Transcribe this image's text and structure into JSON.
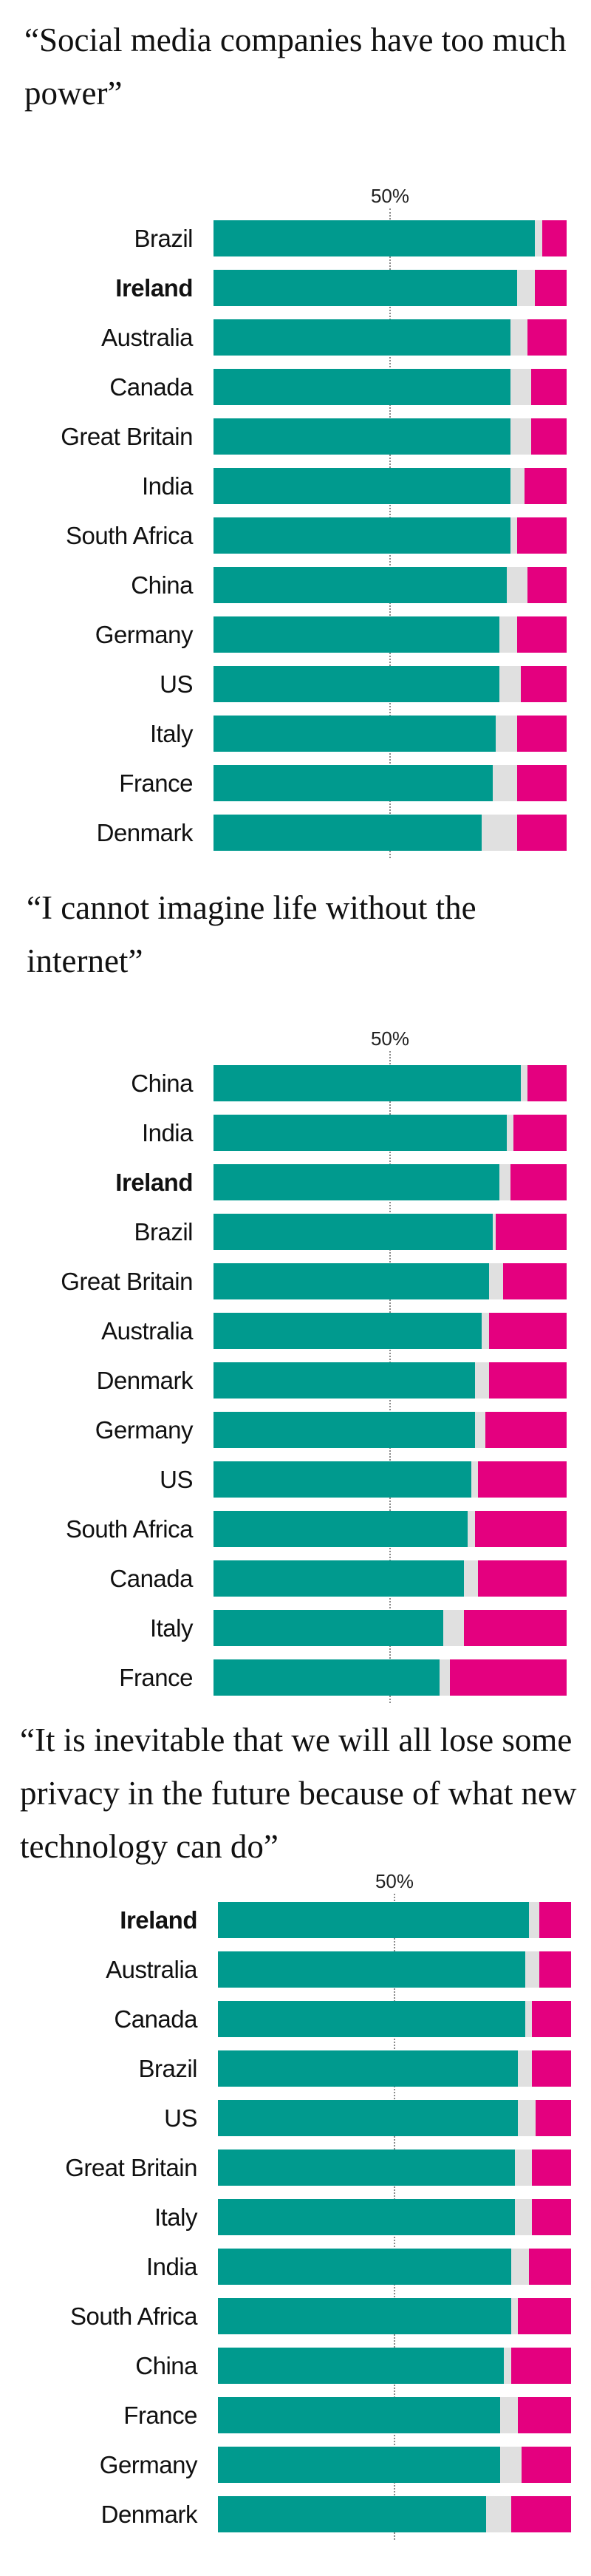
{
  "colors": {
    "agree": "#009a8e",
    "neither": "#e0e0e0",
    "disagree": "#e4007f",
    "midline": "#8a8a8a"
  },
  "chart_data": [
    {
      "type": "bar",
      "stacked": true,
      "orientation": "horizontal",
      "title": "“Social media companies have too much power”",
      "tick_label": "50%",
      "xlim": [
        0,
        100
      ],
      "highlight": "Ireland",
      "categories": [
        "Brazil",
        "Ireland",
        "Australia",
        "Canada",
        "Great Britain",
        "India",
        "South Africa",
        "China",
        "Germany",
        "US",
        "Italy",
        "France",
        "Denmark"
      ],
      "values": [
        [
          91,
          2,
          7
        ],
        [
          86,
          5,
          9
        ],
        [
          84,
          5,
          11
        ],
        [
          84,
          6,
          10
        ],
        [
          84,
          6,
          10
        ],
        [
          84,
          4,
          12
        ],
        [
          84,
          2,
          14
        ],
        [
          83,
          6,
          11
        ],
        [
          81,
          5,
          14
        ],
        [
          81,
          6,
          13
        ],
        [
          80,
          6,
          14
        ],
        [
          79,
          7,
          14
        ],
        [
          76,
          10,
          14
        ]
      ]
    },
    {
      "type": "bar",
      "stacked": true,
      "orientation": "horizontal",
      "title": "“I cannot imagine life without the internet”",
      "tick_label": "50%",
      "xlim": [
        0,
        100
      ],
      "highlight": "Ireland",
      "categories": [
        "China",
        "India",
        "Ireland",
        "Brazil",
        "Great Britain",
        "Australia",
        "Denmark",
        "Germany",
        "US",
        "South Africa",
        "Canada",
        "Italy",
        "France"
      ],
      "values": [
        [
          87,
          2,
          11
        ],
        [
          83,
          2,
          15
        ],
        [
          81,
          3,
          16
        ],
        [
          79,
          1,
          20
        ],
        [
          78,
          4,
          18
        ],
        [
          76,
          2,
          22
        ],
        [
          74,
          4,
          22
        ],
        [
          74,
          3,
          23
        ],
        [
          73,
          2,
          25
        ],
        [
          72,
          2,
          26
        ],
        [
          71,
          4,
          25
        ],
        [
          65,
          6,
          29
        ],
        [
          64,
          3,
          33
        ]
      ]
    },
    {
      "type": "bar",
      "stacked": true,
      "orientation": "horizontal",
      "title": "“It is inevitable that we will all lose some privacy in the future because of what new technology can do”",
      "tick_label": "50%",
      "xlim": [
        0,
        100
      ],
      "highlight": "Ireland",
      "categories": [
        "Ireland",
        "Australia",
        "Canada",
        "Brazil",
        "US",
        "Great Britain",
        "Italy",
        "India",
        "South Africa",
        "China",
        "France",
        "Germany",
        "Denmark"
      ],
      "values": [
        [
          88,
          3,
          9
        ],
        [
          87,
          4,
          9
        ],
        [
          87,
          2,
          11
        ],
        [
          85,
          4,
          11
        ],
        [
          85,
          5,
          10
        ],
        [
          84,
          5,
          11
        ],
        [
          84,
          5,
          11
        ],
        [
          83,
          5,
          12
        ],
        [
          83,
          2,
          15
        ],
        [
          81,
          2,
          17
        ],
        [
          80,
          5,
          15
        ],
        [
          80,
          6,
          14
        ],
        [
          76,
          7,
          17
        ]
      ]
    }
  ]
}
